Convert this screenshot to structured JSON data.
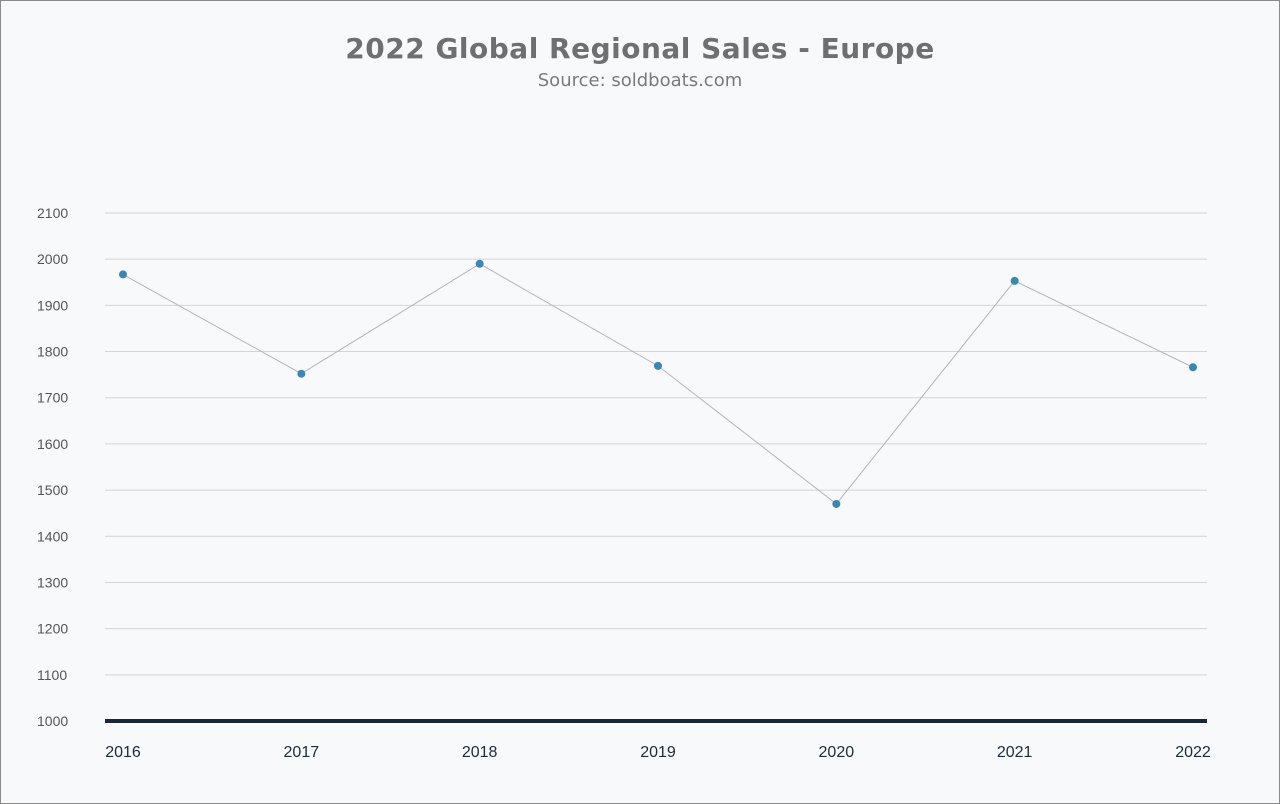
{
  "chart_data": {
    "type": "line",
    "title": "2022 Global Regional Sales - Europe",
    "subtitle": "Source: soldboats.com",
    "xlabel": "",
    "ylabel": "",
    "categories": [
      "2016",
      "2017",
      "2018",
      "2019",
      "2020",
      "2021",
      "2022"
    ],
    "series": [
      {
        "values": [
          1967,
          1752,
          1990,
          1769,
          1470,
          1953,
          1766
        ]
      }
    ],
    "ylim": [
      1000,
      2100
    ],
    "yticks": [
      1000,
      1100,
      1200,
      1300,
      1400,
      1500,
      1600,
      1700,
      1800,
      1900,
      2000,
      2100
    ],
    "grid": true,
    "legend": "none",
    "colors": {
      "line": "#b5b5b5",
      "marker": "#3a87b5",
      "grid": "#d4d4d4",
      "baseline": "#17263b"
    }
  }
}
